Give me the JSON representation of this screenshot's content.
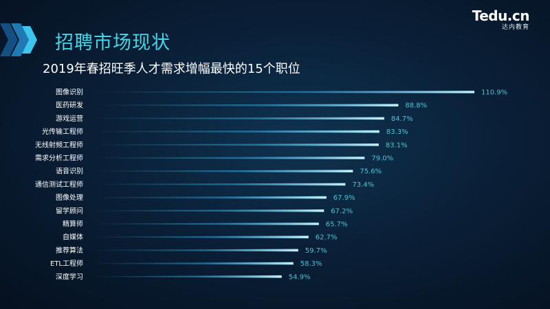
{
  "header": {
    "section_title": "招聘市场现状",
    "logo_text": "Tedu.cn",
    "logo_subtext": "达内教育"
  },
  "colors": {
    "accent": "#43d6e6",
    "bar": "#3fc6e8",
    "value_label": "#4fc3d6",
    "background": "#0a2038"
  },
  "chart_data": {
    "type": "bar",
    "orientation": "horizontal",
    "title": "2019年春招旺季人才需求增幅最快的15个职位",
    "categories": [
      "图像识别",
      "医药研发",
      "游戏运营",
      "光传输工程师",
      "无线射频工程师",
      "需求分析工程师",
      "语音识别",
      "通信测试工程师",
      "图像处理",
      "留学顾问",
      "精算师",
      "自媒体",
      "推荐算法",
      "ETL工程师",
      "深度学习"
    ],
    "values": [
      110.9,
      88.8,
      84.7,
      83.3,
      83.1,
      79.0,
      75.6,
      73.4,
      67.9,
      67.2,
      65.7,
      62.7,
      59.7,
      58.3,
      54.9
    ],
    "value_labels": [
      "110.9%",
      "88.8%",
      "84.7%",
      "83.3%",
      "83.1%",
      "79.0%",
      "75.6%",
      "73.4%",
      "67.9%",
      "67.2%",
      "65.7%",
      "62.7%",
      "59.7%",
      "58.3%",
      "54.9%"
    ],
    "unit": "%",
    "grid": false,
    "legend": "none"
  }
}
